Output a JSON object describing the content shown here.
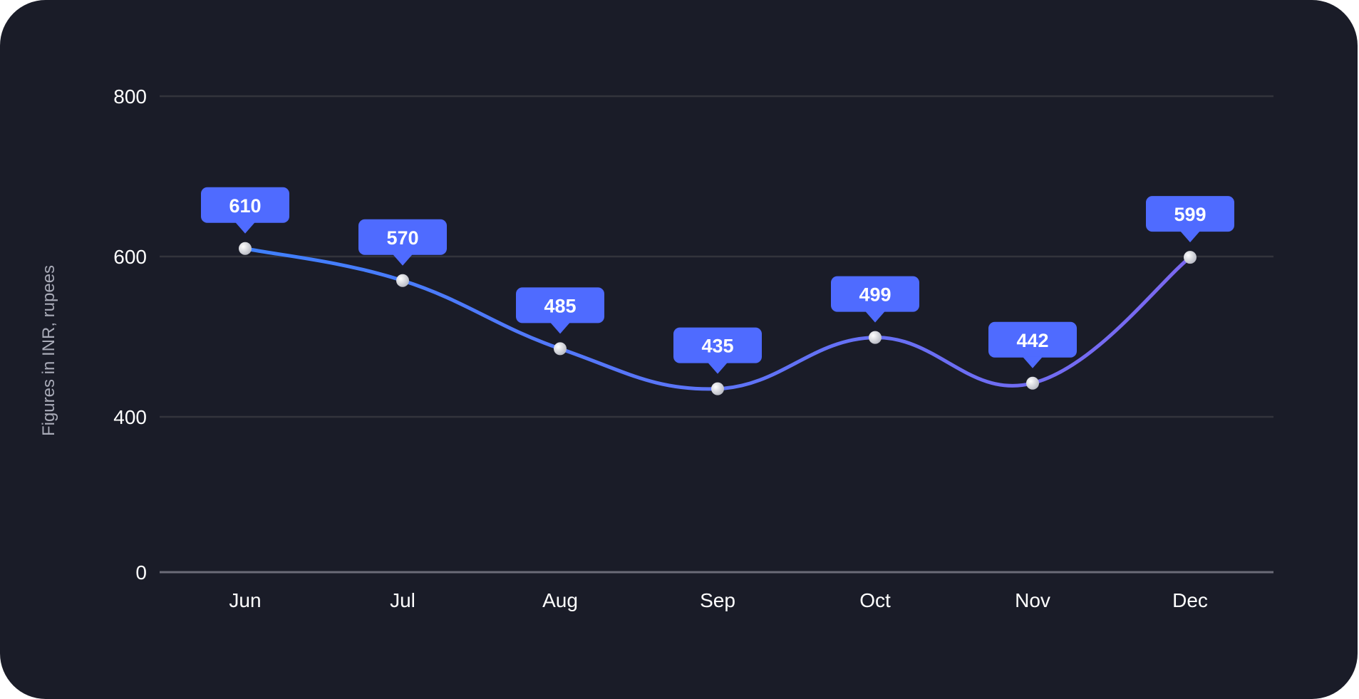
{
  "chart_data": {
    "type": "line",
    "title": "",
    "xlabel": "",
    "ylabel": "Figures in INR, rupees",
    "categories": [
      "Jun",
      "Jul",
      "Aug",
      "Sep",
      "Oct",
      "Nov",
      "Dec"
    ],
    "series": [
      {
        "name": "Figures in INR",
        "values": [
          610,
          570,
          485,
          435,
          499,
          442,
          599
        ]
      }
    ],
    "y_ticks": [
      0,
      400,
      600,
      800
    ],
    "ylim": [
      0,
      800
    ],
    "grid": true,
    "legend": "none",
    "colors": {
      "background": "#1a1c28",
      "line_start": "#3f80ff",
      "line_end": "#7b68f0",
      "tooltip": "#4f6bff",
      "grid": "#33343c",
      "baseline": "#6b6b78",
      "text": "#ffffff",
      "axis_label": "#a9abb8"
    }
  }
}
